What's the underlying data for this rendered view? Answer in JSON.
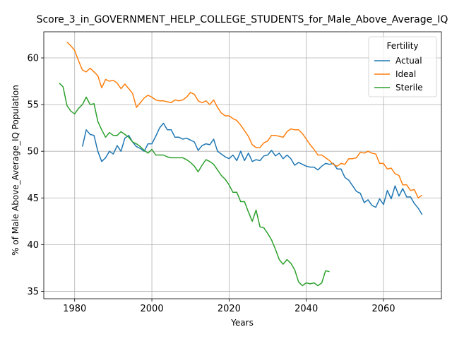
{
  "chart_data": {
    "type": "line",
    "title": "Score_3_in_GOVERNMENT_HELP_COLLEGE_STUDENTS_for_Male_Above_Average_IQ",
    "xlabel": "Years",
    "ylabel": "% of Male Above_Average_IQ Population",
    "xlim": [
      1972,
      2075
    ],
    "ylim": [
      34.2,
      62.8
    ],
    "xticks": [
      1980,
      2000,
      2020,
      2040,
      2060
    ],
    "yticks": [
      35,
      40,
      45,
      50,
      55,
      60
    ],
    "grid": true,
    "legend": {
      "title": "Fertility",
      "position": "top-right"
    },
    "series": [
      {
        "name": "Actual",
        "color": "#1f77b4",
        "x": [
          1982,
          1983,
          1984,
          1985,
          1986,
          1987,
          1988,
          1989,
          1990,
          1991,
          1992,
          1993,
          1994,
          1995,
          1996,
          1997,
          1998,
          1999,
          2000,
          2001,
          2002,
          2003,
          2004,
          2005,
          2006,
          2007,
          2008,
          2009,
          2010,
          2011,
          2012,
          2013,
          2014,
          2015,
          2016,
          2017,
          2018,
          2019,
          2020,
          2021,
          2022,
          2023,
          2024,
          2025,
          2026,
          2027,
          2028,
          2029,
          2030,
          2031,
          2032,
          2033,
          2034,
          2035,
          2036,
          2037,
          2038,
          2039,
          2040,
          2041,
          2042,
          2043,
          2044,
          2045,
          2046,
          2047,
          2048,
          2049,
          2050,
          2051,
          2052,
          2053,
          2054,
          2055,
          2056,
          2057,
          2058,
          2059,
          2060,
          2061,
          2062,
          2063,
          2064,
          2065,
          2066,
          2067,
          2068,
          2069,
          2070
        ],
        "values": [
          50.5,
          52.3,
          51.8,
          51.7,
          50.0,
          48.9,
          49.3,
          50.0,
          49.7,
          50.6,
          50.0,
          51.4,
          51.7,
          51.0,
          50.5,
          50.3,
          50.0,
          50.8,
          50.8,
          51.6,
          52.5,
          53.0,
          52.3,
          52.3,
          51.5,
          51.5,
          51.3,
          51.4,
          51.2,
          51.0,
          50.1,
          50.6,
          50.8,
          50.7,
          51.3,
          50.0,
          49.7,
          49.4,
          49.2,
          49.6,
          49.0,
          50.0,
          49.0,
          49.8,
          48.9,
          49.1,
          49.0,
          49.5,
          49.6,
          50.1,
          49.5,
          49.8,
          49.2,
          49.6,
          49.2,
          48.5,
          48.8,
          48.6,
          48.4,
          48.3,
          48.3,
          48.0,
          48.4,
          48.7,
          48.6,
          48.7,
          48.1,
          48.1,
          47.2,
          46.9,
          46.3,
          45.7,
          45.5,
          44.5,
          44.8,
          44.2,
          44.0,
          44.9,
          44.3,
          45.8,
          44.9,
          46.3,
          45.2,
          46.0,
          45.1,
          45.1,
          44.4,
          43.9,
          43.2
        ]
      },
      {
        "name": "Ideal",
        "color": "#ff7f0e",
        "x": [
          1978,
          1979,
          1980,
          1981,
          1982,
          1983,
          1984,
          1985,
          1986,
          1987,
          1988,
          1989,
          1990,
          1991,
          1992,
          1993,
          1994,
          1995,
          1996,
          1997,
          1998,
          1999,
          2000,
          2001,
          2002,
          2003,
          2004,
          2005,
          2006,
          2007,
          2008,
          2009,
          2010,
          2011,
          2012,
          2013,
          2014,
          2015,
          2016,
          2017,
          2018,
          2019,
          2020,
          2021,
          2022,
          2023,
          2024,
          2025,
          2026,
          2027,
          2028,
          2029,
          2030,
          2031,
          2032,
          2033,
          2034,
          2035,
          2036,
          2037,
          2038,
          2039,
          2040,
          2041,
          2042,
          2043,
          2044,
          2045,
          2046,
          2047,
          2048,
          2049,
          2050,
          2051,
          2052,
          2053,
          2054,
          2055,
          2056,
          2057,
          2058,
          2059,
          2060,
          2061,
          2062,
          2063,
          2064,
          2065,
          2066,
          2067,
          2068,
          2069,
          2070
        ],
        "values": [
          61.7,
          61.3,
          60.8,
          59.7,
          58.7,
          58.5,
          58.9,
          58.5,
          58.1,
          56.8,
          57.7,
          57.5,
          57.6,
          57.3,
          56.7,
          57.2,
          56.7,
          56.2,
          54.7,
          55.2,
          55.7,
          56.0,
          55.8,
          55.5,
          55.4,
          55.4,
          55.3,
          55.2,
          55.5,
          55.4,
          55.5,
          55.8,
          56.3,
          56.1,
          55.4,
          55.2,
          55.4,
          55.0,
          55.5,
          54.7,
          54.1,
          53.8,
          53.8,
          53.5,
          53.3,
          52.8,
          52.2,
          51.6,
          50.7,
          50.4,
          50.4,
          50.9,
          51.1,
          51.7,
          51.7,
          51.6,
          51.5,
          52.1,
          52.4,
          52.3,
          52.3,
          51.9,
          51.3,
          50.7,
          50.2,
          49.6,
          49.6,
          49.3,
          49.0,
          48.6,
          48.4,
          48.7,
          48.6,
          49.2,
          49.2,
          49.3,
          49.9,
          49.8,
          50.0,
          49.8,
          49.7,
          48.7,
          48.7,
          48.1,
          48.2,
          47.6,
          47.4,
          46.4,
          46.4,
          45.8,
          45.9,
          45.0,
          45.3
        ]
      },
      {
        "name": "Sterile",
        "color": "#2ca02c",
        "x": [
          1976,
          1977,
          1978,
          1979,
          1980,
          1981,
          1982,
          1983,
          1984,
          1985,
          1986,
          1987,
          1988,
          1989,
          1990,
          1991,
          1992,
          1993,
          1994,
          1995,
          1996,
          1997,
          1998,
          1999,
          2000,
          2001,
          2002,
          2003,
          2004,
          2005,
          2006,
          2007,
          2008,
          2009,
          2010,
          2011,
          2012,
          2013,
          2014,
          2015,
          2016,
          2017,
          2018,
          2019,
          2020,
          2021,
          2022,
          2023,
          2024,
          2025,
          2026,
          2027,
          2028,
          2029,
          2030,
          2031,
          2032,
          2033,
          2034,
          2035,
          2036,
          2037,
          2038,
          2039,
          2040,
          2041,
          2042,
          2043,
          2044,
          2045,
          2046
        ],
        "values": [
          57.3,
          56.9,
          54.9,
          54.3,
          54.0,
          54.6,
          55.0,
          55.8,
          55.0,
          55.1,
          53.2,
          52.3,
          51.5,
          52.0,
          51.7,
          51.7,
          52.1,
          51.8,
          51.5,
          51.0,
          50.8,
          50.5,
          50.1,
          49.8,
          50.2,
          49.6,
          49.6,
          49.6,
          49.4,
          49.3,
          49.3,
          49.3,
          49.3,
          49.1,
          48.8,
          48.4,
          47.8,
          48.5,
          49.1,
          48.9,
          48.6,
          48.0,
          47.4,
          47.0,
          46.4,
          45.6,
          45.6,
          44.6,
          44.6,
          43.5,
          42.5,
          43.7,
          41.9,
          41.8,
          41.2,
          40.5,
          39.5,
          38.4,
          37.9,
          38.4,
          38.0,
          37.3,
          36.0,
          35.6,
          35.9,
          35.8,
          35.9,
          35.6,
          35.9,
          37.2,
          37.1
        ]
      }
    ]
  }
}
